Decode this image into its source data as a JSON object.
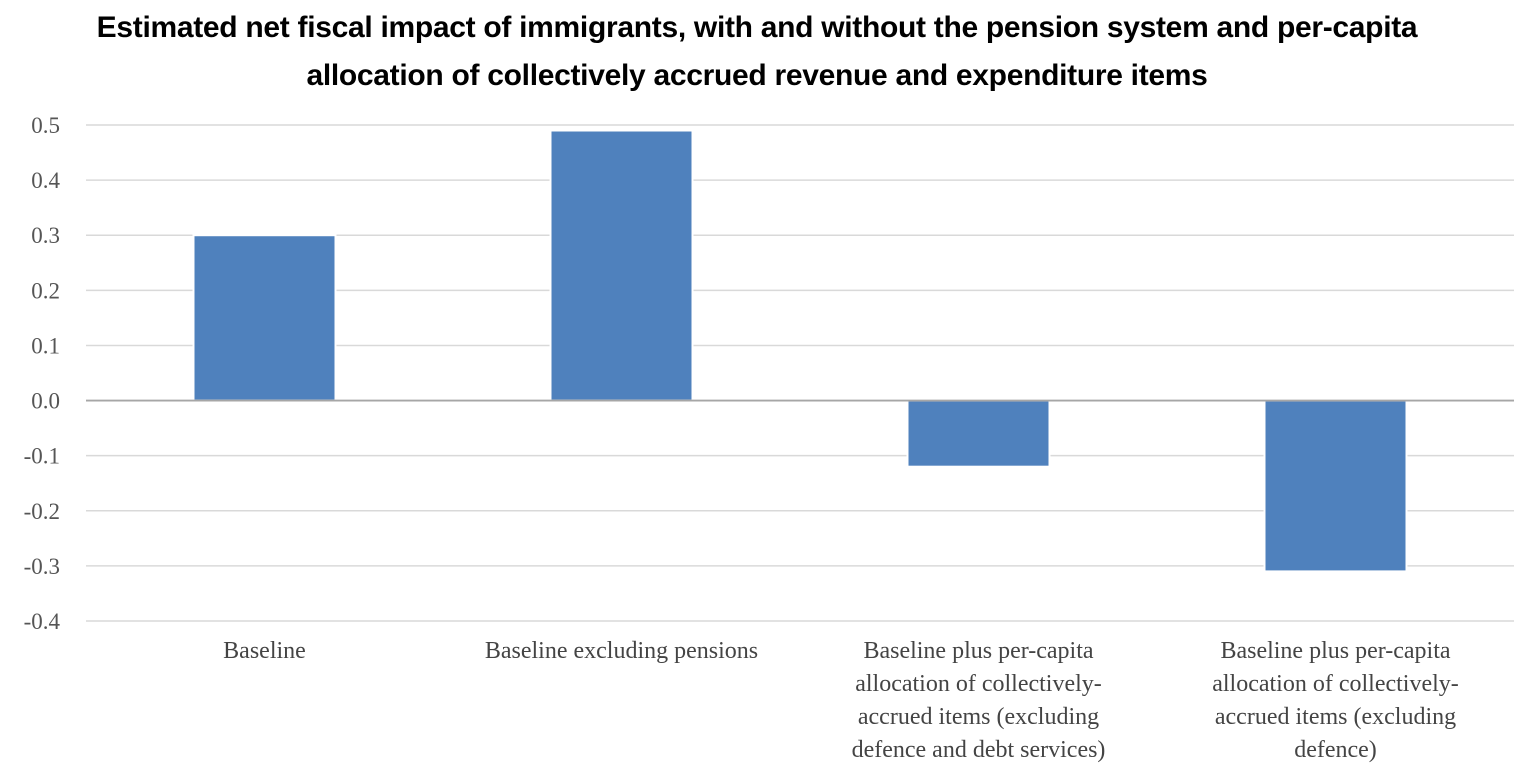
{
  "chart_data": {
    "type": "bar",
    "title_lines": [
      "Estimated net fiscal impact of immigrants, with and without the pension system and per-capita",
      "allocation of collectively accrued revenue and expenditure items"
    ],
    "categories": [
      [
        "Baseline"
      ],
      [
        "Baseline excluding pensions"
      ],
      [
        "Baseline plus per-capita",
        "allocation of collectively-",
        "accrued items (excluding",
        "defence and debt services)"
      ],
      [
        "Baseline plus per-capita",
        "allocation of collectively-",
        "accrued items (excluding",
        "defence)"
      ]
    ],
    "values": [
      0.3,
      0.49,
      -0.12,
      -0.31
    ],
    "ylim": [
      -0.4,
      0.5
    ],
    "yticks": [
      0.5,
      0.4,
      0.3,
      0.2,
      0.1,
      0.0,
      -0.1,
      -0.2,
      -0.3,
      -0.4
    ],
    "ytick_labels": [
      "0.5",
      "0.4",
      "0.3",
      "0.2",
      "0.1",
      "0.0",
      "-0.1",
      "-0.2",
      "-0.3",
      "-0.4"
    ],
    "grid": true,
    "legend": false,
    "bar_color": "#4F81BD",
    "grid_color": "#D9D9D9",
    "zero_line_color": "#A6A6A6"
  }
}
